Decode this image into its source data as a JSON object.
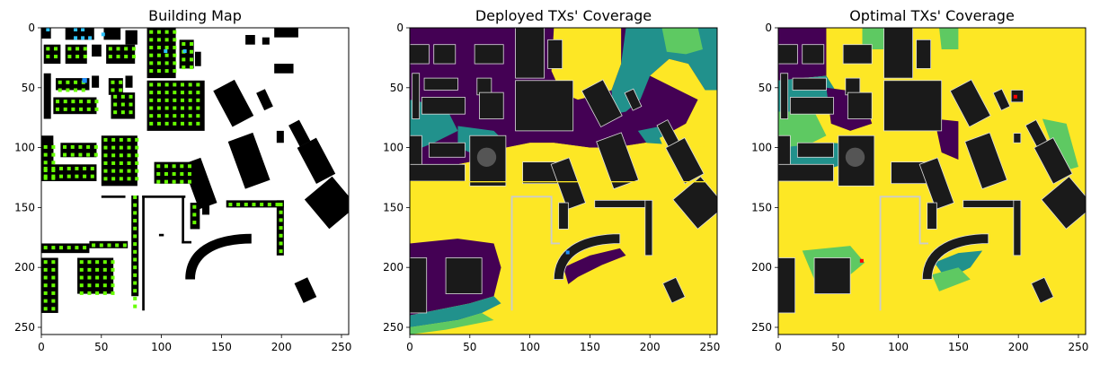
{
  "figure": {
    "panels": [
      {
        "title": "Building Map"
      },
      {
        "title": "Deployed TXs' Coverage"
      },
      {
        "title": "Optimal TXs' Coverage"
      }
    ]
  },
  "palette": {
    "background": "#ffffff",
    "building": "#000000",
    "building_edge": "#222222",
    "candidate": "#66ff00",
    "deployed_tx": "#1e90ff",
    "deployed_cluster": "#2ec4ff",
    "optimal_tx": "#ff0000",
    "cov_none": "#440154",
    "cov_low": "#21918c",
    "cov_mid": "#5ec962",
    "cov_high": "#fde725",
    "building_in_cov": "#111111",
    "building_gray": "#2f2f2f"
  },
  "chart_data": [
    {
      "type": "heatmap",
      "title": "Building Map",
      "xlim": [
        0,
        256
      ],
      "ylim": [
        256,
        0
      ],
      "xticks": [
        0,
        50,
        100,
        150,
        200,
        250
      ],
      "yticks": [
        0,
        50,
        100,
        150,
        200,
        250
      ],
      "grid": false
    },
    {
      "type": "heatmap",
      "title": "Deployed TXs' Coverage",
      "xlim": [
        0,
        256
      ],
      "ylim": [
        256,
        0
      ],
      "xticks": [
        0,
        50,
        100,
        150,
        200,
        250
      ],
      "yticks": [
        0,
        50,
        100,
        150,
        200,
        250
      ],
      "grid": false
    },
    {
      "type": "heatmap",
      "title": "Optimal TXs' Coverage",
      "xlim": [
        0,
        256
      ],
      "ylim": [
        256,
        0
      ],
      "xticks": [
        0,
        50,
        100,
        150,
        200,
        250
      ],
      "yticks": [
        0,
        50,
        100,
        150,
        200,
        250
      ],
      "grid": false
    }
  ]
}
